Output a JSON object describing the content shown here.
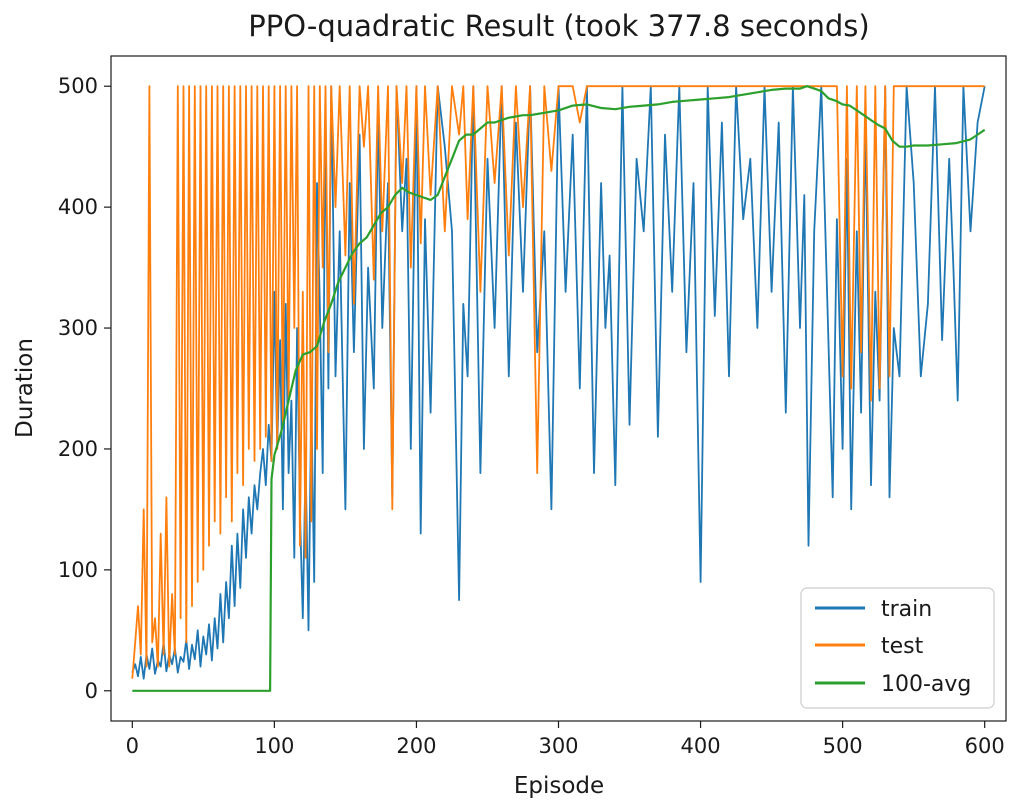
{
  "chart_data": {
    "type": "line",
    "title": "PPO-quadratic Result (took 377.8 seconds)",
    "xlabel": "Episode",
    "ylabel": "Duration",
    "xlim": [
      -15,
      615
    ],
    "ylim": [
      -25,
      525
    ],
    "xticks": [
      0,
      100,
      200,
      300,
      400,
      500,
      600
    ],
    "yticks": [
      0,
      100,
      200,
      300,
      400,
      500
    ],
    "grid": false,
    "legend_position": "bottom-right",
    "series": [
      {
        "name": "train",
        "color": "#1f77b4",
        "x": [
          0,
          2,
          4,
          6,
          8,
          10,
          12,
          14,
          16,
          18,
          20,
          22,
          24,
          26,
          28,
          30,
          32,
          34,
          36,
          38,
          40,
          42,
          44,
          46,
          48,
          50,
          52,
          54,
          56,
          58,
          60,
          62,
          64,
          66,
          68,
          70,
          72,
          74,
          76,
          78,
          80,
          82,
          84,
          86,
          88,
          90,
          92,
          94,
          96,
          98,
          100,
          102,
          104,
          106,
          108,
          110,
          112,
          114,
          116,
          118,
          120,
          122,
          124,
          126,
          128,
          130,
          132,
          134,
          136,
          138,
          140,
          143,
          146,
          150,
          153,
          156,
          160,
          163,
          166,
          170,
          173,
          176,
          180,
          183,
          186,
          190,
          193,
          196,
          200,
          203,
          206,
          210,
          215,
          220,
          225,
          230,
          233,
          236,
          240,
          245,
          250,
          255,
          260,
          265,
          270,
          275,
          280,
          285,
          290,
          295,
          300,
          305,
          310,
          315,
          320,
          325,
          330,
          333,
          336,
          340,
          345,
          350,
          355,
          360,
          365,
          370,
          375,
          380,
          385,
          390,
          395,
          400,
          405,
          410,
          415,
          420,
          425,
          430,
          435,
          440,
          445,
          450,
          455,
          460,
          465,
          470,
          473,
          476,
          480,
          485,
          490,
          493,
          496,
          500,
          503,
          506,
          510,
          513,
          516,
          520,
          523,
          526,
          530,
          533,
          536,
          540,
          545,
          550,
          555,
          560,
          565,
          570,
          575,
          578,
          581,
          585,
          590,
          595,
          600
        ],
        "y": [
          15,
          22,
          12,
          28,
          10,
          30,
          18,
          35,
          14,
          25,
          20,
          40,
          16,
          30,
          22,
          35,
          15,
          28,
          24,
          42,
          18,
          38,
          26,
          50,
          20,
          45,
          30,
          55,
          25,
          60,
          35,
          80,
          40,
          90,
          60,
          120,
          70,
          130,
          85,
          150,
          110,
          160,
          130,
          170,
          150,
          180,
          200,
          170,
          220,
          190,
          330,
          200,
          290,
          150,
          320,
          180,
          240,
          110,
          300,
          150,
          60,
          190,
          50,
          240,
          90,
          420,
          320,
          180,
          480,
          250,
          500,
          260,
          380,
          150,
          420,
          280,
          460,
          200,
          350,
          250,
          480,
          300,
          420,
          160,
          500,
          380,
          440,
          200,
          500,
          130,
          390,
          230,
          500,
          450,
          380,
          75,
          320,
          260,
          500,
          180,
          440,
          300,
          500,
          260,
          470,
          330,
          500,
          280,
          380,
          150,
          500,
          330,
          460,
          250,
          500,
          180,
          420,
          300,
          360,
          170,
          500,
          220,
          440,
          380,
          500,
          210,
          460,
          330,
          500,
          280,
          420,
          90,
          500,
          310,
          470,
          260,
          500,
          390,
          440,
          300,
          500,
          330,
          470,
          230,
          500,
          300,
          410,
          120,
          380,
          500,
          290,
          160,
          390,
          200,
          440,
          150,
          380,
          230,
          470,
          170,
          330,
          240,
          500,
          160,
          300,
          260,
          500,
          420,
          260,
          320,
          500,
          290,
          440,
          350,
          240,
          500,
          380,
          470,
          500
        ]
      },
      {
        "name": "test",
        "color": "#ff7f0e",
        "x": [
          0,
          2,
          4,
          6,
          8,
          10,
          12,
          14,
          16,
          18,
          20,
          22,
          24,
          26,
          28,
          30,
          32,
          34,
          36,
          38,
          40,
          42,
          44,
          46,
          48,
          50,
          52,
          54,
          56,
          58,
          60,
          62,
          64,
          66,
          68,
          70,
          72,
          74,
          76,
          78,
          80,
          82,
          84,
          86,
          88,
          90,
          92,
          94,
          96,
          98,
          100,
          102,
          104,
          106,
          108,
          110,
          112,
          114,
          116,
          118,
          120,
          122,
          124,
          126,
          128,
          130,
          132,
          134,
          136,
          138,
          140,
          143,
          146,
          150,
          153,
          156,
          160,
          163,
          166,
          170,
          173,
          176,
          180,
          183,
          186,
          190,
          193,
          196,
          200,
          203,
          206,
          210,
          215,
          220,
          225,
          230,
          233,
          236,
          240,
          245,
          250,
          255,
          260,
          265,
          270,
          275,
          280,
          285,
          290,
          295,
          300,
          305,
          310,
          315,
          320,
          325,
          330,
          333,
          336,
          340,
          345,
          350,
          355,
          360,
          365,
          370,
          375,
          380,
          385,
          390,
          395,
          400,
          405,
          410,
          415,
          420,
          425,
          430,
          435,
          440,
          445,
          450,
          455,
          460,
          465,
          470,
          473,
          476,
          480,
          485,
          490,
          493,
          496,
          500,
          503,
          506,
          510,
          513,
          516,
          520,
          523,
          526,
          530,
          533,
          536,
          540,
          545,
          550,
          555,
          560,
          565,
          570,
          575,
          578,
          581,
          585,
          590,
          595,
          600
        ],
        "y": [
          10,
          40,
          70,
          30,
          150,
          20,
          500,
          40,
          60,
          20,
          130,
          30,
          160,
          20,
          80,
          30,
          500,
          60,
          500,
          40,
          500,
          70,
          500,
          90,
          500,
          100,
          500,
          120,
          500,
          140,
          500,
          130,
          500,
          160,
          500,
          140,
          500,
          180,
          500,
          170,
          500,
          200,
          500,
          190,
          500,
          200,
          500,
          210,
          500,
          190,
          500,
          200,
          500,
          220,
          500,
          240,
          500,
          300,
          500,
          120,
          330,
          110,
          500,
          140,
          500,
          200,
          500,
          350,
          500,
          280,
          500,
          400,
          500,
          360,
          500,
          320,
          500,
          450,
          500,
          340,
          500,
          380,
          500,
          150,
          500,
          420,
          500,
          350,
          500,
          370,
          500,
          410,
          500,
          380,
          500,
          460,
          500,
          390,
          500,
          330,
          500,
          420,
          500,
          360,
          500,
          400,
          500,
          180,
          500,
          430,
          500,
          500,
          500,
          470,
          500,
          500,
          500,
          500,
          500,
          500,
          500,
          500,
          500,
          500,
          500,
          500,
          500,
          500,
          500,
          500,
          500,
          500,
          500,
          500,
          500,
          500,
          500,
          500,
          500,
          500,
          500,
          500,
          500,
          500,
          500,
          500,
          500,
          500,
          500,
          500,
          500,
          500,
          500,
          260,
          500,
          250,
          500,
          280,
          500,
          240,
          500,
          250,
          500,
          260,
          500,
          500,
          500,
          500,
          500,
          500,
          500,
          500,
          500,
          500,
          500,
          500,
          500,
          500,
          500
        ]
      },
      {
        "name": "100-avg",
        "color": "#2ca02c",
        "x": [
          0,
          97,
          98,
          100,
          105,
          110,
          115,
          120,
          125,
          130,
          135,
          140,
          145,
          150,
          155,
          160,
          165,
          170,
          175,
          180,
          185,
          190,
          195,
          200,
          205,
          210,
          215,
          220,
          225,
          230,
          235,
          240,
          245,
          250,
          255,
          260,
          265,
          270,
          275,
          280,
          285,
          290,
          295,
          300,
          310,
          320,
          330,
          340,
          350,
          360,
          370,
          380,
          390,
          400,
          410,
          420,
          430,
          440,
          450,
          460,
          470,
          475,
          480,
          485,
          490,
          495,
          500,
          505,
          510,
          515,
          520,
          525,
          530,
          535,
          540,
          545,
          550,
          560,
          570,
          580,
          590,
          595,
          600
        ],
        "y": [
          0,
          0,
          175,
          195,
          215,
          240,
          265,
          278,
          280,
          285,
          305,
          320,
          338,
          350,
          362,
          370,
          375,
          385,
          395,
          400,
          410,
          416,
          412,
          410,
          408,
          406,
          410,
          425,
          440,
          455,
          460,
          460,
          465,
          470,
          470,
          472,
          474,
          475,
          476,
          476,
          477,
          478,
          479,
          480,
          484,
          485,
          482,
          481,
          483,
          484,
          485,
          487,
          488,
          489,
          490,
          491,
          493,
          495,
          497,
          498,
          498,
          500,
          498,
          496,
          490,
          488,
          485,
          484,
          480,
          476,
          472,
          468,
          465,
          455,
          450,
          450,
          451,
          451,
          452,
          453,
          456,
          460,
          464
        ]
      }
    ]
  }
}
